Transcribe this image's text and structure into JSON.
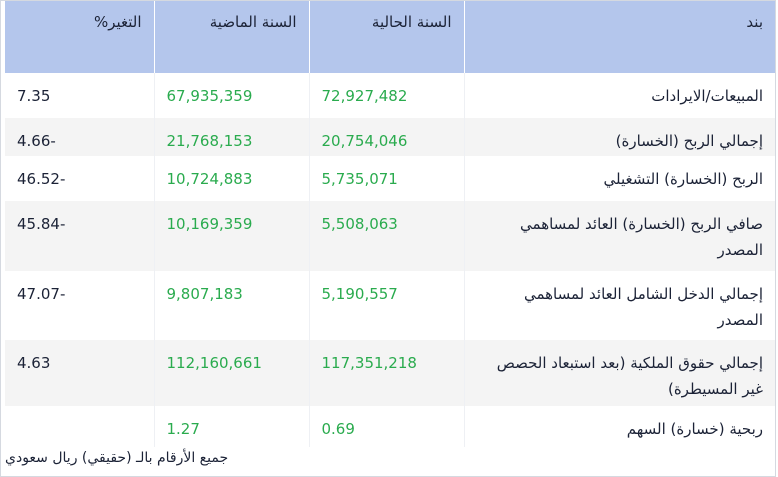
{
  "table": {
    "headers": {
      "item": "بند",
      "current_year": "السنة الحالية",
      "previous_year": "السنة الماضية",
      "change": "التغير%"
    },
    "rows": [
      {
        "item": "المبيعات/الايرادات",
        "current": "72,927,482",
        "previous": "67,935,359",
        "change": "7.35"
      },
      {
        "item": "إجمالي الربح (الخسارة)",
        "current": "20,754,046",
        "previous": "21,768,153",
        "change": "4.66-"
      },
      {
        "item": "الربح (الخسارة) التشغيلي",
        "current": "5,735,071",
        "previous": "10,724,883",
        "change": "46.52-"
      },
      {
        "item": "صافي الربح (الخسارة) العائد لمساهمي المصدر",
        "current": "5,508,063",
        "previous": "10,169,359",
        "change": "45.84-"
      },
      {
        "item": "إجمالي الدخل الشامل العائد لمساهمي المصدر",
        "current": "5,190,557",
        "previous": "9,807,183",
        "change": "47.07-"
      },
      {
        "item": "إجمالي حقوق الملكية (بعد استبعاد الحصص غير المسيطرة)",
        "current": "117,351,218",
        "previous": "112,160,661",
        "change": "4.63"
      },
      {
        "item": "ربحية (خسارة) السهم",
        "current": "0.69",
        "previous": "1.27",
        "change": ""
      }
    ]
  },
  "footer": "جميع الأرقام بالـ (حقيقي) ريال سعودي",
  "colors": {
    "header_bg": "#b4c6ec",
    "value_green": "#2aab4e",
    "alt_row_bg": "#f4f4f4"
  }
}
